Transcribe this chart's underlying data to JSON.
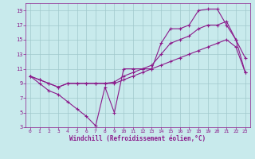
{
  "xlabel": "Windchill (Refroidissement éolien,°C)",
  "xlim": [
    -0.5,
    23.5
  ],
  "ylim": [
    3,
    20
  ],
  "xticks": [
    0,
    1,
    2,
    3,
    4,
    5,
    6,
    7,
    8,
    9,
    10,
    11,
    12,
    13,
    14,
    15,
    16,
    17,
    18,
    19,
    20,
    21,
    22,
    23
  ],
  "yticks": [
    3,
    5,
    7,
    9,
    11,
    13,
    15,
    17,
    19
  ],
  "background_color": "#c8eaec",
  "line_color": "#8B1A8B",
  "grid_color": "#a0c8cc",
  "line1_x": [
    0,
    1,
    2,
    3,
    4,
    5,
    6,
    7,
    8,
    9,
    10,
    11,
    12,
    13,
    14,
    15,
    16,
    17,
    18,
    19,
    20,
    21,
    22,
    23
  ],
  "line1_y": [
    10,
    9,
    8,
    7.5,
    6.5,
    5.5,
    4.5,
    3.2,
    8.5,
    5,
    11,
    11,
    11,
    11,
    14.5,
    16.5,
    16.5,
    17,
    19,
    19.2,
    19.2,
    17,
    15,
    12.5
  ],
  "line2_x": [
    0,
    1,
    2,
    3,
    4,
    5,
    6,
    7,
    8,
    9,
    10,
    11,
    12,
    13,
    14,
    15,
    16,
    17,
    18,
    19,
    20,
    21,
    22,
    23
  ],
  "line2_y": [
    10,
    9.5,
    9,
    8.5,
    9,
    9,
    9,
    9,
    9,
    9.2,
    10,
    10.5,
    11,
    11.5,
    13,
    14.5,
    15,
    15.5,
    16.5,
    17,
    17,
    17.5,
    15,
    10.5
  ],
  "line3_x": [
    0,
    1,
    2,
    3,
    4,
    5,
    6,
    7,
    8,
    9,
    10,
    11,
    12,
    13,
    14,
    15,
    16,
    17,
    18,
    19,
    20,
    21,
    22,
    23
  ],
  "line3_y": [
    10,
    9.5,
    9,
    8.5,
    9,
    9,
    9,
    9,
    9,
    9,
    9.5,
    10,
    10.5,
    11,
    11.5,
    12,
    12.5,
    13,
    13.5,
    14,
    14.5,
    15,
    14,
    10.5
  ]
}
